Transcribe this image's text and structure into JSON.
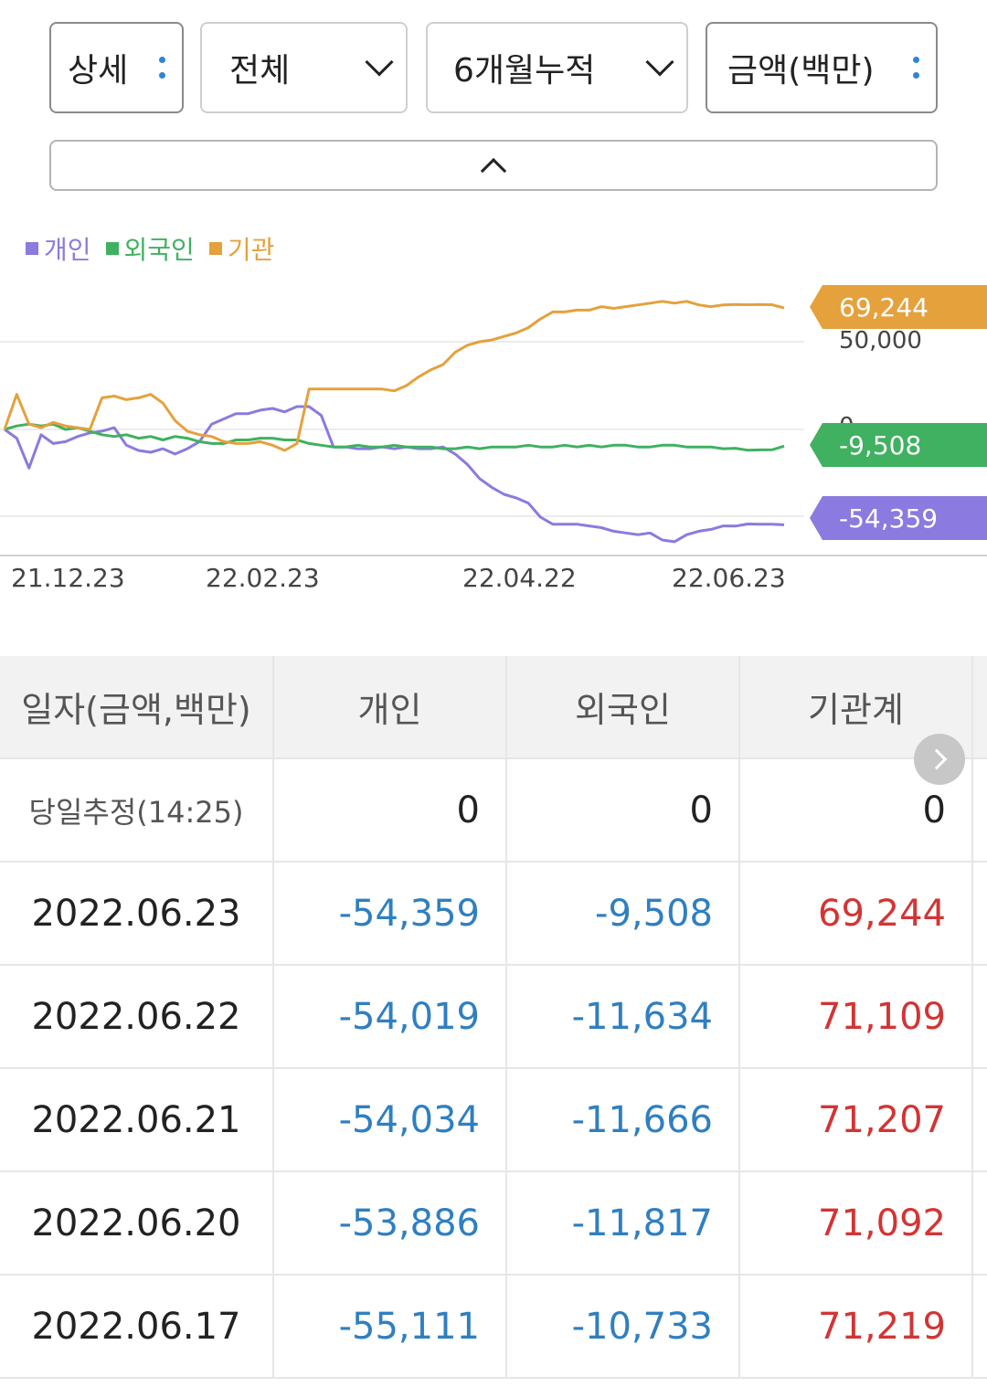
{
  "toolbar": {
    "detail_label": "상세",
    "scope_label": "전체",
    "period_label": "6개월누적",
    "unit_label": "금액(백만)"
  },
  "legend": [
    {
      "label": "개인",
      "color": "#8b7ae0"
    },
    {
      "label": "외국인",
      "color": "#3fb160"
    },
    {
      "label": "기관",
      "color": "#e5a13c"
    }
  ],
  "chart_data": {
    "type": "line",
    "x_ticks": [
      "21.12.23",
      "22.02.23",
      "22.04.22",
      "22.06.23"
    ],
    "y_ticks": [
      "50,000",
      "0"
    ],
    "ylim": [
      -80000,
      80000
    ],
    "series": [
      {
        "name": "개인",
        "color": "#8b7ae0",
        "last_label": "-54,359",
        "values": [
          0,
          -5000,
          -22000,
          -3000,
          -8000,
          -7000,
          -4000,
          -2000,
          -1000,
          1000,
          -9000,
          -12000,
          -13000,
          -11000,
          -14000,
          -11000,
          -7000,
          3000,
          6000,
          9000,
          9000,
          11000,
          12000,
          10000,
          13000,
          13000,
          8000,
          -10000,
          -10000,
          -11000,
          -11000,
          -10000,
          -11000,
          -10000,
          -11000,
          -11000,
          -10000,
          -14000,
          -20000,
          -28000,
          -33000,
          -37000,
          -39000,
          -42000,
          -50000,
          -54000,
          -54000,
          -54000,
          -55000,
          -56000,
          -58000,
          -59000,
          -60000,
          -59000,
          -63000,
          -64000,
          -60000,
          -58000,
          -57000,
          -55000,
          -55111,
          -53886,
          -54034,
          -54019,
          -54359
        ]
      },
      {
        "name": "외국인",
        "color": "#3fb160",
        "values": [
          0,
          2000,
          3000,
          2000,
          3000,
          0,
          1000,
          -1000,
          -3000,
          -4000,
          -3000,
          -5000,
          -4000,
          -6000,
          -4000,
          -5000,
          -7000,
          -8000,
          -8000,
          -6000,
          -6000,
          -5000,
          -5000,
          -6000,
          -6000,
          -8000,
          -9000,
          -10000,
          -10000,
          -9000,
          -10000,
          -10000,
          -9000,
          -10000,
          -10000,
          -10000,
          -11000,
          -11000,
          -10000,
          -11000,
          -10000,
          -10000,
          -10000,
          -9000,
          -10000,
          -10000,
          -9000,
          -10000,
          -9000,
          -10000,
          -9000,
          -9000,
          -10000,
          -10000,
          -9000,
          -9000,
          -10000,
          -10000,
          -10000,
          -11000,
          -10733,
          -11817,
          -11666,
          -11634,
          -9508
        ],
        "last_label": "-9,508"
      },
      {
        "name": "기관",
        "color": "#e5a13c",
        "values": [
          0,
          20000,
          3000,
          1000,
          4000,
          2000,
          1000,
          0,
          18000,
          19000,
          17000,
          18000,
          20000,
          15000,
          5000,
          -1000,
          -3000,
          -4000,
          -7000,
          -8000,
          -8000,
          -7000,
          -9000,
          -12000,
          -8000,
          23000,
          23000,
          23000,
          23000,
          23000,
          23000,
          23000,
          22000,
          25000,
          30000,
          34000,
          37000,
          44000,
          48000,
          50000,
          51000,
          53000,
          55000,
          58000,
          63000,
          67000,
          67000,
          68000,
          68000,
          70000,
          69000,
          70000,
          71000,
          72000,
          73000,
          72000,
          73000,
          71000,
          70000,
          71000,
          71219,
          71092,
          71207,
          71109,
          69244
        ],
        "last_label": "69,244"
      }
    ]
  },
  "table": {
    "headers": [
      "일자(금액,백만)",
      "개인",
      "외국인",
      "기관계"
    ],
    "estimate": {
      "label": "당일추정(14:25)",
      "individual": "0",
      "foreign": "0",
      "institution": "0"
    },
    "rows": [
      {
        "date": "2022.06.23",
        "individual": "-54,359",
        "foreign": "-9,508",
        "institution": "69,244"
      },
      {
        "date": "2022.06.22",
        "individual": "-54,019",
        "foreign": "-11,634",
        "institution": "71,109"
      },
      {
        "date": "2022.06.21",
        "individual": "-54,034",
        "foreign": "-11,666",
        "institution": "71,207"
      },
      {
        "date": "2022.06.20",
        "individual": "-53,886",
        "foreign": "-11,817",
        "institution": "71,092"
      },
      {
        "date": "2022.06.17",
        "individual": "-55,111",
        "foreign": "-10,733",
        "institution": "71,219"
      }
    ]
  }
}
